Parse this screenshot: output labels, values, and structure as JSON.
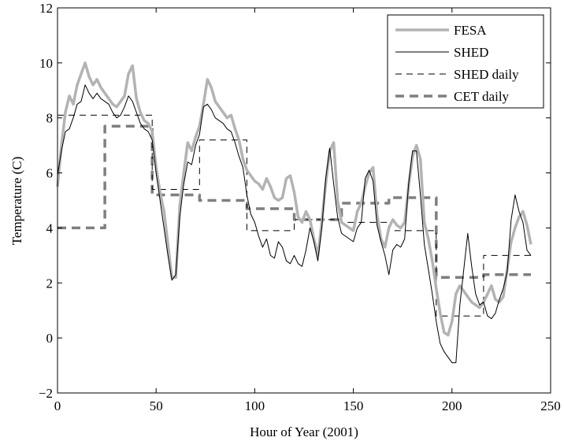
{
  "chart_data": {
    "type": "line",
    "xlabel": "Hour of Year (2001)",
    "ylabel": "Temperature (C)",
    "xlim": [
      0,
      250
    ],
    "ylim": [
      -2,
      12
    ],
    "x_ticks": [
      "0",
      "50",
      "100",
      "150",
      "200",
      "250"
    ],
    "y_ticks": [
      "−2",
      "0",
      "2",
      "4",
      "6",
      "8",
      "10",
      "12"
    ],
    "grid": false,
    "legend_position": "top-right",
    "series": [
      {
        "name": "FESA",
        "style": "thick-solid",
        "color": "#b3b3b3",
        "x": [
          0,
          2,
          4,
          6,
          8,
          10,
          12,
          14,
          16,
          18,
          20,
          22,
          24,
          26,
          28,
          30,
          32,
          34,
          36,
          38,
          40,
          42,
          44,
          46,
          48,
          50,
          52,
          54,
          56,
          58,
          60,
          62,
          64,
          66,
          68,
          70,
          72,
          74,
          76,
          78,
          80,
          82,
          84,
          86,
          88,
          90,
          92,
          94,
          96,
          98,
          100,
          102,
          104,
          106,
          108,
          110,
          112,
          114,
          116,
          118,
          120,
          122,
          124,
          126,
          128,
          130,
          132,
          134,
          136,
          138,
          140,
          142,
          144,
          146,
          148,
          150,
          152,
          154,
          156,
          158,
          160,
          162,
          164,
          166,
          168,
          170,
          172,
          174,
          176,
          178,
          180,
          182,
          184,
          186,
          188,
          190,
          192,
          194,
          196,
          198,
          200,
          202,
          204,
          206,
          208,
          210,
          212,
          214,
          216,
          218,
          220,
          222,
          224,
          226,
          228,
          230,
          232,
          234,
          236,
          238,
          240
        ],
        "y": [
          5.5,
          7.0,
          8.2,
          8.8,
          8.5,
          9.2,
          9.6,
          10.0,
          9.5,
          9.2,
          9.4,
          9.1,
          8.9,
          8.7,
          8.5,
          8.4,
          8.6,
          8.8,
          9.6,
          9.9,
          8.7,
          8.2,
          7.9,
          7.8,
          7.5,
          6.2,
          5.3,
          4.6,
          3.4,
          2.2,
          2.2,
          4.8,
          6.0,
          7.1,
          6.8,
          7.3,
          7.7,
          8.5,
          9.4,
          9.1,
          8.6,
          8.4,
          8.2,
          8.0,
          8.1,
          7.6,
          7.2,
          6.5,
          6.1,
          5.9,
          5.7,
          5.6,
          5.4,
          5.8,
          5.5,
          5.1,
          5.0,
          5.1,
          5.8,
          5.9,
          5.3,
          4.4,
          4.2,
          4.6,
          4.3,
          3.6,
          3.0,
          4.2,
          5.6,
          6.8,
          7.1,
          5.0,
          4.2,
          4.1,
          4.0,
          3.9,
          4.6,
          4.9,
          5.5,
          6.0,
          6.2,
          4.5,
          3.6,
          3.3,
          4.0,
          4.3,
          4.1,
          4.0,
          4.2,
          5.5,
          6.6,
          7.0,
          6.5,
          4.2,
          3.6,
          2.8,
          1.8,
          0.9,
          0.2,
          0.1,
          0.6,
          1.6,
          1.9,
          1.7,
          1.5,
          1.3,
          1.2,
          1.1,
          1.3,
          1.6,
          1.9,
          1.4,
          1.3,
          1.5,
          2.5,
          3.5,
          4.0,
          4.4,
          4.6,
          4.1,
          3.4
        ],
        "points_note": ""
      },
      {
        "name": "SHED",
        "style": "thin-solid",
        "color": "#000000",
        "x": [
          0,
          2,
          4,
          6,
          8,
          10,
          12,
          14,
          16,
          18,
          20,
          22,
          24,
          26,
          28,
          30,
          32,
          34,
          36,
          38,
          40,
          42,
          44,
          46,
          48,
          50,
          52,
          54,
          56,
          58,
          60,
          62,
          64,
          66,
          68,
          70,
          72,
          74,
          76,
          78,
          80,
          82,
          84,
          86,
          88,
          90,
          92,
          94,
          96,
          98,
          100,
          102,
          104,
          106,
          108,
          110,
          112,
          114,
          116,
          118,
          120,
          122,
          124,
          126,
          128,
          130,
          132,
          134,
          136,
          138,
          140,
          142,
          144,
          146,
          148,
          150,
          152,
          154,
          156,
          158,
          160,
          162,
          164,
          166,
          168,
          170,
          172,
          174,
          176,
          178,
          180,
          182,
          184,
          186,
          188,
          190,
          192,
          194,
          196,
          198,
          200,
          202,
          204,
          206,
          208,
          210,
          212,
          214,
          216,
          218,
          220,
          222,
          224,
          226,
          228,
          230,
          232,
          234,
          236,
          238,
          240
        ],
        "y": [
          5.9,
          6.8,
          7.5,
          7.6,
          8.0,
          8.5,
          8.6,
          9.2,
          8.9,
          8.7,
          8.9,
          8.7,
          8.6,
          8.5,
          8.2,
          8.0,
          8.1,
          8.4,
          8.8,
          8.6,
          8.2,
          7.8,
          7.6,
          7.5,
          7.2,
          6.0,
          5.0,
          4.0,
          3.0,
          2.1,
          2.3,
          4.4,
          5.6,
          6.4,
          6.3,
          7.0,
          7.4,
          8.4,
          8.5,
          8.3,
          8.0,
          7.9,
          7.8,
          7.6,
          7.5,
          7.1,
          6.6,
          6.2,
          5.2,
          4.5,
          4.2,
          3.7,
          3.3,
          3.6,
          3.0,
          2.9,
          3.5,
          3.3,
          2.8,
          2.7,
          3.0,
          2.7,
          2.6,
          3.2,
          4.0,
          3.5,
          2.8,
          4.0,
          5.8,
          6.9,
          5.6,
          4.4,
          3.8,
          3.7,
          3.6,
          3.5,
          4.0,
          4.2,
          5.8,
          6.1,
          5.7,
          4.1,
          3.5,
          3.0,
          2.3,
          3.2,
          3.4,
          3.3,
          3.6,
          5.6,
          6.8,
          6.8,
          5.2,
          3.4,
          2.5,
          1.6,
          0.6,
          -0.2,
          -0.5,
          -0.7,
          -0.9,
          -0.9,
          1.2,
          2.5,
          3.8,
          2.6,
          1.6,
          1.2,
          1.3,
          0.8,
          0.7,
          0.9,
          1.4,
          1.8,
          2.4,
          4.3,
          5.2,
          4.6,
          4.2,
          3.2,
          3.0
        ]
      },
      {
        "name": "SHED daily",
        "style": "thin-dashed",
        "color": "#000000",
        "steps": [
          {
            "x0": 0,
            "x1": 48,
            "y": 8.1
          },
          {
            "x0": 48,
            "x1": 72,
            "y": 5.4
          },
          {
            "x0": 72,
            "x1": 96,
            "y": 7.2
          },
          {
            "x0": 96,
            "x1": 120,
            "y": 3.9
          },
          {
            "x0": 120,
            "x1": 144,
            "y": 4.3
          },
          {
            "x0": 144,
            "x1": 168,
            "y": 4.2
          },
          {
            "x0": 168,
            "x1": 192,
            "y": 3.9
          },
          {
            "x0": 192,
            "x1": 216,
            "y": 0.8
          },
          {
            "x0": 216,
            "x1": 240,
            "y": 3.0
          }
        ]
      },
      {
        "name": "CET daily",
        "style": "thick-dashed",
        "color": "#7f7f7f",
        "steps": [
          {
            "x0": 0,
            "x1": 24,
            "y": 4.0
          },
          {
            "x0": 24,
            "x1": 48,
            "y": 7.7
          },
          {
            "x0": 48,
            "x1": 72,
            "y": 5.2
          },
          {
            "x0": 72,
            "x1": 96,
            "y": 5.0
          },
          {
            "x0": 96,
            "x1": 120,
            "y": 4.7
          },
          {
            "x0": 120,
            "x1": 144,
            "y": 4.3
          },
          {
            "x0": 144,
            "x1": 168,
            "y": 4.9
          },
          {
            "x0": 168,
            "x1": 192,
            "y": 5.1
          },
          {
            "x0": 192,
            "x1": 216,
            "y": 2.2
          },
          {
            "x0": 216,
            "x1": 240,
            "y": 2.3
          }
        ]
      }
    ]
  }
}
